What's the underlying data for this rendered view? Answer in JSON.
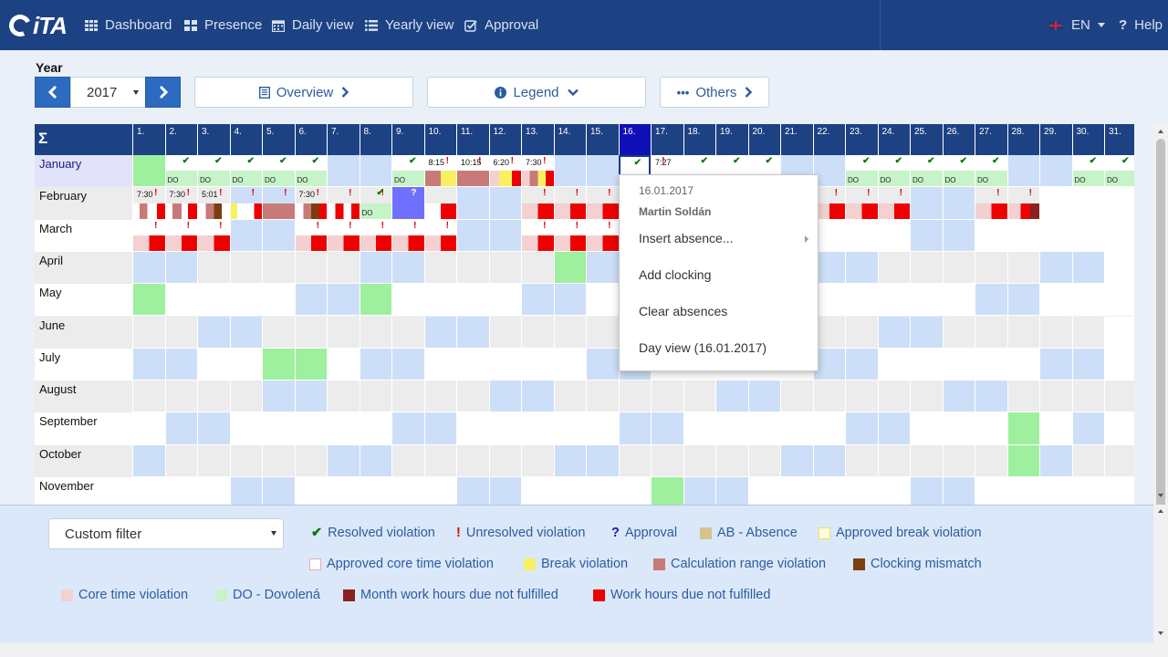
{
  "nav": {
    "logo": "iTA",
    "items": [
      {
        "label": "Dashboard",
        "icon": "grid-icon"
      },
      {
        "label": "Presence",
        "icon": "grid-icon"
      },
      {
        "label": "Daily view",
        "icon": "calendar-icon"
      },
      {
        "label": "Yearly view",
        "icon": "list-icon"
      },
      {
        "label": "Approval",
        "icon": "check-square-icon"
      }
    ],
    "language": "EN",
    "help": "Help"
  },
  "toolbar": {
    "year_label": "Year",
    "year_value": "2017",
    "overview": "Overview",
    "legend": "Legend",
    "others": "Others"
  },
  "calendar": {
    "sigma": "Σ",
    "selected_day": "16.",
    "days": [
      "1.",
      "2.",
      "3.",
      "4.",
      "5.",
      "6.",
      "7.",
      "8.",
      "9.",
      "10.",
      "11.",
      "12.",
      "13.",
      "14.",
      "15.",
      "16.",
      "17.",
      "18.",
      "19.",
      "20.",
      "21.",
      "22.",
      "23.",
      "24.",
      "25.",
      "26.",
      "27.",
      "28.",
      "29.",
      "30.",
      "31."
    ],
    "months": [
      "January",
      "February",
      "March",
      "April",
      "May",
      "June",
      "July",
      "August",
      "September",
      "October",
      "November"
    ],
    "january_times": {
      "10": "8:15",
      "11": "10:15",
      "12": "6:20",
      "13": "7:30",
      "17": "7:27"
    },
    "february_times": {
      "1": "7:30",
      "2": "7:30",
      "3": "5:01",
      "6": "7:30"
    },
    "do_label": "DO"
  },
  "context_menu": {
    "date": "16.01.2017",
    "user": "Martin Soldán",
    "items": [
      "Insert absence...",
      "Add clocking",
      "Clear absences",
      "Day view (16.01.2017)"
    ]
  },
  "legend": {
    "filter": "Custom filter",
    "items": [
      {
        "symbol": "✔",
        "label": "Resolved violation",
        "color": "#0a7a0a"
      },
      {
        "symbol": "!",
        "label": "Unresolved violation",
        "color": "#d50000"
      },
      {
        "symbol": "?",
        "label": "Approval",
        "color": "#1a1aa8"
      },
      {
        "label": "AB - Absence",
        "color": "#d4c48a"
      },
      {
        "label": "Approved break violation",
        "color": "#fffde0",
        "border": "#f0e060"
      },
      {
        "label": "Approved core time violation",
        "color": "#ffffff",
        "border": "#e0b0b0"
      },
      {
        "label": "Break violation",
        "color": "#f8f060"
      },
      {
        "label": "Calculation range violation",
        "color": "#c87a78"
      },
      {
        "label": "Clocking mismatch",
        "color": "#7a3e10"
      },
      {
        "label": "Core time violation",
        "color": "#f4d0d0"
      },
      {
        "label": "DO - Dovolená",
        "color": "#c6f4c8"
      },
      {
        "label": "Month work hours due not fulfilled",
        "color": "#8b2020"
      },
      {
        "label": "Work hours due not fulfilled",
        "color": "#ee0000"
      }
    ]
  }
}
